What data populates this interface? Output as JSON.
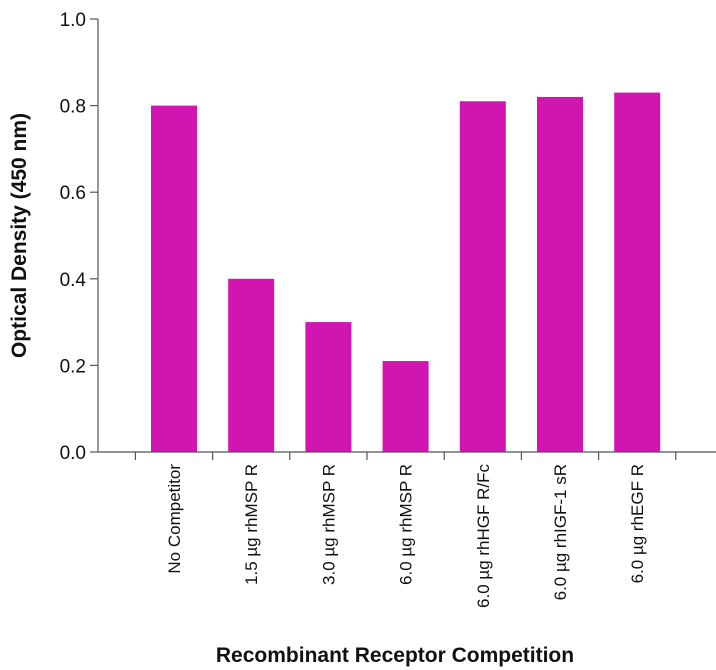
{
  "chart_data": {
    "type": "bar",
    "xlabel": "Recombinant Receptor Competition",
    "ylabel": "Optical Density (450 nm)",
    "ylim": [
      0,
      1.0
    ],
    "yticks": [
      "0.0",
      "0.2",
      "0.4",
      "0.6",
      "0.8",
      "1.0"
    ],
    "categories": [
      "No Competitor",
      "1.5 µg rhMSP R",
      "3.0 µg rhMSP R",
      "6.0 µg rhMSP R",
      "6.0 µg rhHGF R/Fc",
      "6.0 µg rhIGF-1 sR",
      "6.0 µg rhEGF R"
    ],
    "values": [
      0.8,
      0.4,
      0.3,
      0.21,
      0.81,
      0.82,
      0.83
    ],
    "bar_color": "#d015b0",
    "grid": false
  }
}
